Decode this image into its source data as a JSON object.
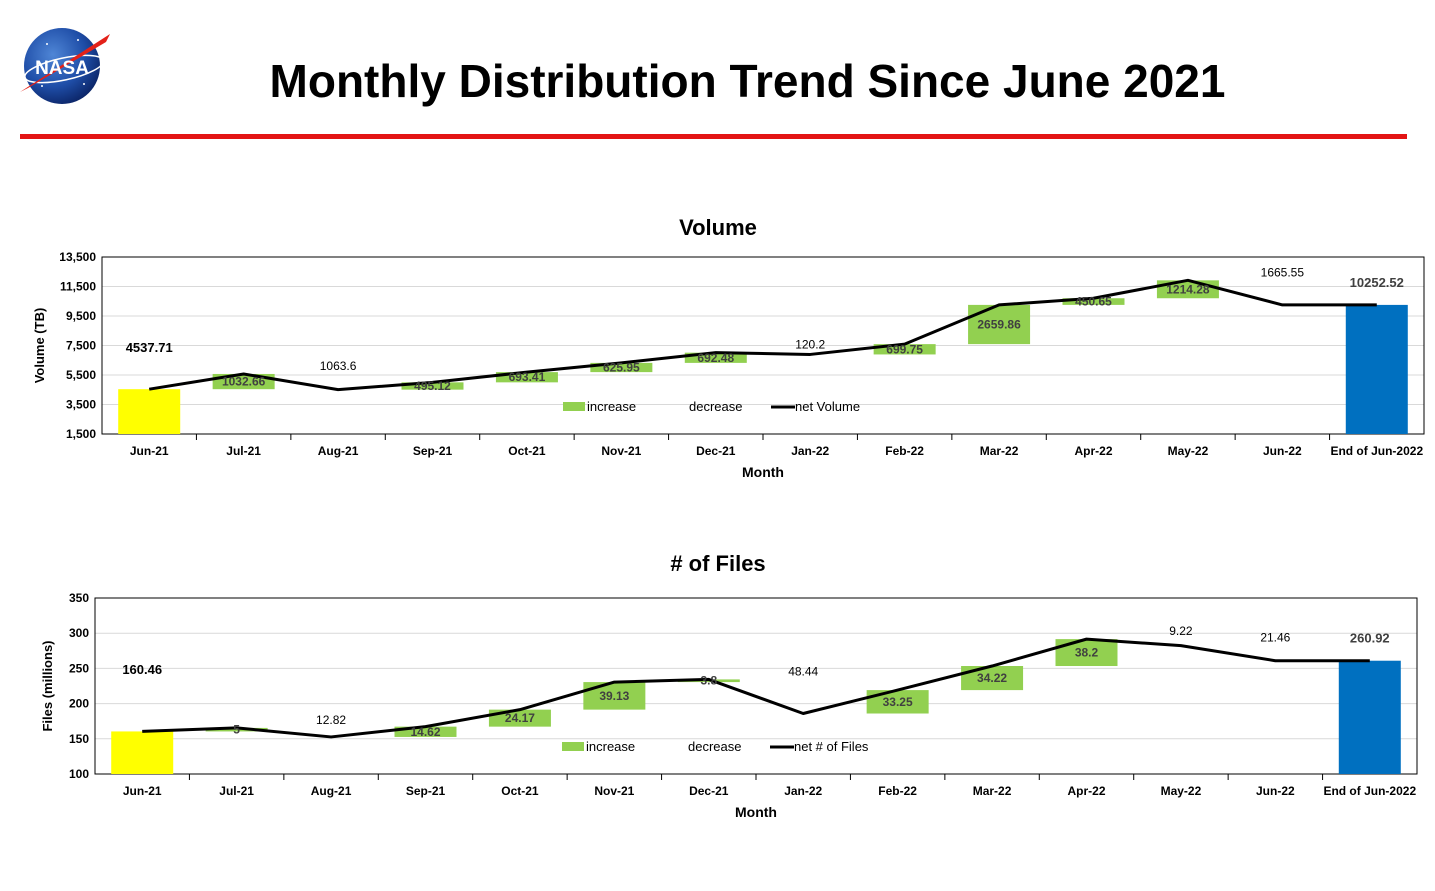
{
  "header": {
    "title": "Monthly Distribution Trend Since June 2021",
    "logo_text": "NASA",
    "rule_color": "#e31414"
  },
  "colors": {
    "start": "#ffff00",
    "end": "#0070c0",
    "increase": "#92d050",
    "line": "#000000",
    "grid": "#d9d9d9"
  },
  "chart_data": [
    {
      "type": "bar",
      "subtype": "waterfall",
      "title": "Volume",
      "xlabel": "Month",
      "ylabel": "Volume (TB)",
      "ylim": [
        1500,
        13500
      ],
      "yticks": [
        "1,500",
        "3,500",
        "5,500",
        "7,500",
        "9,500",
        "11,500",
        "13,500"
      ],
      "categories": [
        "Jun-21",
        "Jul-21",
        "Aug-21",
        "Sep-21",
        "Oct-21",
        "Nov-21",
        "Dec-21",
        "Jan-22",
        "Feb-22",
        "Mar-22",
        "Apr-22",
        "May-22",
        "Jun-22",
        "End of Jun-2022"
      ],
      "labels": [
        "4537.71",
        "1032.66",
        "1063.6",
        "495.12",
        "693.41",
        "625.95",
        "692.48",
        "120.2",
        "699.75",
        "2659.86",
        "450.65",
        "1214.28",
        "1665.55",
        "10252.52"
      ],
      "changes": [
        4537.71,
        1032.66,
        -1063.6,
        495.12,
        693.41,
        625.95,
        692.48,
        -120.2,
        699.75,
        2659.86,
        450.65,
        1214.28,
        -1665.55,
        10252.52
      ],
      "net": [
        4537.71,
        5570.37,
        4506.77,
        5001.89,
        5695.3,
        6321.25,
        7013.73,
        6893.53,
        7593.28,
        10253.14,
        10703.79,
        11918.07,
        10252.52,
        10252.52
      ],
      "legend": [
        "increase",
        "decrease",
        "net Volume"
      ],
      "grid": true,
      "legend_position": "inside-bottom-center"
    },
    {
      "type": "bar",
      "subtype": "waterfall",
      "title": "# of Files",
      "xlabel": "Month",
      "ylabel": "Files (millions)",
      "ylim": [
        100,
        350
      ],
      "yticks": [
        "100",
        "150",
        "200",
        "250",
        "300",
        "350"
      ],
      "categories": [
        "Jun-21",
        "Jul-21",
        "Aug-21",
        "Sep-21",
        "Oct-21",
        "Nov-21",
        "Dec-21",
        "Jan-22",
        "Feb-22",
        "Mar-22",
        "Apr-22",
        "May-22",
        "Jun-22",
        "End of Jun-2022"
      ],
      "labels": [
        "160.46",
        "5",
        "12.82",
        "14.62",
        "24.17",
        "39.13",
        "3.8",
        "48.44",
        "33.25",
        "34.22",
        "38.2",
        "9.22",
        "21.46",
        "260.92"
      ],
      "changes": [
        160.46,
        5,
        -12.82,
        14.62,
        24.17,
        39.13,
        3.8,
        -48.44,
        33.25,
        34.22,
        38.2,
        -9.22,
        -21.46,
        260.92
      ],
      "net": [
        160.46,
        165.46,
        152.64,
        167.26,
        191.43,
        230.56,
        234.36,
        185.92,
        219.17,
        253.39,
        291.59,
        282.37,
        260.91,
        260.92
      ],
      "legend": [
        "increase",
        "decrease",
        "net # of Files"
      ],
      "grid": true,
      "legend_position": "inside-bottom-center"
    }
  ]
}
